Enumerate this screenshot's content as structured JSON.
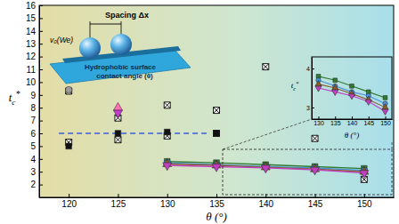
{
  "chart_data": [
    {
      "type": "scatter",
      "x_label": "θ (°)",
      "y_label": "tc*",
      "xlim": [
        117,
        153
      ],
      "ylim": [
        1,
        16
      ],
      "xticks": [
        120,
        125,
        130,
        135,
        140,
        145,
        150
      ],
      "yticks": [
        2,
        3,
        4,
        5,
        6,
        7,
        8,
        9,
        10,
        11,
        12,
        13,
        14,
        15,
        16
      ],
      "annotations": [
        "Spacing Δx",
        "v₀(We)",
        "Hydrophobic surface",
        "contact angle (θ)"
      ],
      "series": [
        {
          "type": "line",
          "line_style": "dashed",
          "color": "#3b5bdb",
          "x": [
            119,
            134
          ],
          "values": [
            6,
            6
          ]
        },
        {
          "type": "scatter",
          "marker": "square-x",
          "color": "#000000",
          "x": [
            120,
            120,
            125,
            125,
            130,
            130,
            135,
            135,
            140,
            145,
            150
          ],
          "values": [
            9.3,
            5.3,
            7.2,
            5.5,
            8.2,
            5.8,
            7.8,
            6.0,
            11.2,
            5.6,
            2.4
          ]
        },
        {
          "type": "scatter",
          "marker": "square",
          "color": "#111111",
          "x": [
            120,
            125,
            130,
            135
          ],
          "values": [
            5.0,
            6.0,
            6.1,
            6.0
          ]
        },
        {
          "type": "scatter",
          "marker": "circle",
          "color": "#9a9a9a",
          "x": [
            120
          ],
          "values": [
            9.4
          ]
        },
        {
          "type": "scatter",
          "marker": "triangle-up",
          "color": "#ff6fb5",
          "x": [
            125
          ],
          "values": [
            8.0
          ]
        },
        {
          "type": "scatter",
          "marker": "triangle-down",
          "color": "#c23ad0",
          "x": [
            125
          ],
          "values": [
            7.6
          ]
        },
        {
          "type": "line",
          "marker": "square",
          "color": "#2f7a2f",
          "x": [
            130,
            135,
            140,
            145,
            150
          ],
          "values": [
            3.8,
            3.7,
            3.55,
            3.4,
            3.25
          ]
        },
        {
          "type": "line",
          "marker": "circle",
          "color": "#4a90d9",
          "x": [
            130,
            135,
            140,
            145,
            150
          ],
          "values": [
            3.7,
            3.55,
            3.4,
            3.3,
            3.1
          ]
        },
        {
          "type": "line",
          "marker": "triangle-up",
          "color": "#8b5a2b",
          "x": [
            130,
            135,
            140,
            145,
            150
          ],
          "values": [
            3.6,
            3.5,
            3.35,
            3.2,
            3.0
          ]
        },
        {
          "type": "line",
          "marker": "triangle-down",
          "color": "#c040c0",
          "x": [
            130,
            135,
            140,
            145,
            150
          ],
          "values": [
            3.5,
            3.4,
            3.3,
            3.15,
            2.9
          ]
        }
      ]
    },
    {
      "type": "scatter",
      "x_label": "θ (°)",
      "y_label": "tc*",
      "xlim": [
        128,
        152
      ],
      "ylim": [
        2.7,
        4.3
      ],
      "xticks": [
        130,
        135,
        140,
        145,
        150
      ],
      "yticks": [
        3,
        4
      ],
      "series": [
        {
          "type": "line",
          "marker": "square",
          "color": "#2f7a2f",
          "x": [
            130,
            135,
            140,
            145,
            150
          ],
          "values": [
            3.8,
            3.7,
            3.55,
            3.4,
            3.25
          ]
        },
        {
          "type": "line",
          "marker": "circle",
          "color": "#4a90d9",
          "x": [
            130,
            135,
            140,
            145,
            150
          ],
          "values": [
            3.7,
            3.55,
            3.4,
            3.3,
            3.1
          ]
        },
        {
          "type": "line",
          "marker": "triangle-up",
          "color": "#8b5a2b",
          "x": [
            130,
            135,
            140,
            145,
            150
          ],
          "values": [
            3.6,
            3.5,
            3.35,
            3.2,
            3.0
          ]
        },
        {
          "type": "line",
          "marker": "triangle-down",
          "color": "#c040c0",
          "x": [
            130,
            135,
            140,
            145,
            150
          ],
          "values": [
            3.5,
            3.4,
            3.3,
            3.15,
            2.9
          ]
        }
      ]
    }
  ]
}
